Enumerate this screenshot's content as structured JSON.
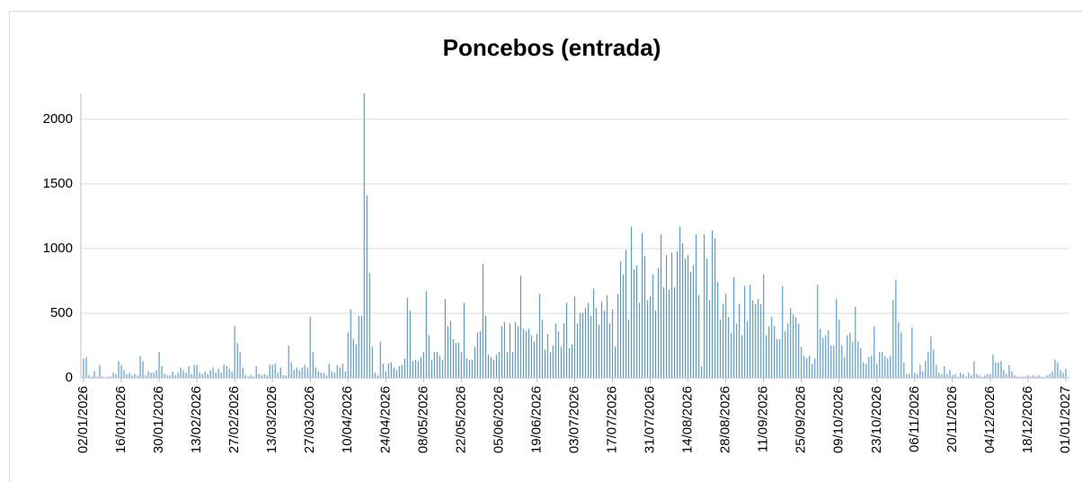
{
  "chart_data": {
    "type": "bar",
    "title": "Poncebos (entrada)",
    "color": "#5b9bd5",
    "grid": true,
    "ylim": [
      0,
      2200
    ],
    "yticks": [
      0,
      500,
      1000,
      1500,
      2000
    ],
    "categories": [
      "02/01/2026",
      null,
      null,
      null,
      null,
      null,
      null,
      null,
      null,
      null,
      null,
      null,
      null,
      null,
      "16/01/2026",
      null,
      null,
      null,
      null,
      null,
      null,
      null,
      null,
      null,
      null,
      null,
      null,
      null,
      "30/01/2026",
      null,
      null,
      null,
      null,
      null,
      null,
      null,
      null,
      null,
      null,
      null,
      null,
      null,
      "13/02/2026",
      null,
      null,
      null,
      null,
      null,
      null,
      null,
      null,
      null,
      null,
      null,
      null,
      null,
      "27/02/2026",
      null,
      null,
      null,
      null,
      null,
      null,
      null,
      null,
      null,
      null,
      null,
      null,
      null,
      "13/03/2026",
      null,
      null,
      null,
      null,
      null,
      null,
      null,
      null,
      null,
      null,
      null,
      null,
      null,
      "27/03/2026",
      null,
      null,
      null,
      null,
      null,
      null,
      null,
      null,
      null,
      null,
      null,
      null,
      null,
      "10/04/2026",
      null,
      null,
      null,
      null,
      null,
      null,
      null,
      null,
      null,
      null,
      null,
      null,
      null,
      "24/04/2026",
      null,
      null,
      null,
      null,
      null,
      null,
      null,
      null,
      null,
      null,
      null,
      null,
      null,
      "08/05/2026",
      null,
      null,
      null,
      null,
      null,
      null,
      null,
      null,
      null,
      null,
      null,
      null,
      null,
      "22/05/2026",
      null,
      null,
      null,
      null,
      null,
      null,
      null,
      null,
      null,
      null,
      null,
      null,
      null,
      "05/06/2026",
      null,
      null,
      null,
      null,
      null,
      null,
      null,
      null,
      null,
      null,
      null,
      null,
      null,
      "19/06/2026",
      null,
      null,
      null,
      null,
      null,
      null,
      null,
      null,
      null,
      null,
      null,
      null,
      null,
      "03/07/2026",
      null,
      null,
      null,
      null,
      null,
      null,
      null,
      null,
      null,
      null,
      null,
      null,
      null,
      "17/07/2026",
      null,
      null,
      null,
      null,
      null,
      null,
      null,
      null,
      null,
      null,
      null,
      null,
      null,
      "31/07/2026",
      null,
      null,
      null,
      null,
      null,
      null,
      null,
      null,
      null,
      null,
      null,
      null,
      null,
      "14/08/2026",
      null,
      null,
      null,
      null,
      null,
      null,
      null,
      null,
      null,
      null,
      null,
      null,
      null,
      "28/08/2026",
      null,
      null,
      null,
      null,
      null,
      null,
      null,
      null,
      null,
      null,
      null,
      null,
      null,
      "11/09/2026",
      null,
      null,
      null,
      null,
      null,
      null,
      null,
      null,
      null,
      null,
      null,
      null,
      null,
      "25/09/2026",
      null,
      null,
      null,
      null,
      null,
      null,
      null,
      null,
      null,
      null,
      null,
      null,
      null,
      "09/10/2026",
      null,
      null,
      null,
      null,
      null,
      null,
      null,
      null,
      null,
      null,
      null,
      null,
      null,
      "23/10/2026",
      null,
      null,
      null,
      null,
      null,
      null,
      null,
      null,
      null,
      null,
      null,
      null,
      null,
      "06/11/2026",
      null,
      null,
      null,
      null,
      null,
      null,
      null,
      null,
      null,
      null,
      null,
      null,
      null,
      "20/11/2026",
      null,
      null,
      null,
      null,
      null,
      null,
      null,
      null,
      null,
      null,
      null,
      null,
      null,
      "04/12/2026",
      null,
      null,
      null,
      null,
      null,
      null,
      null,
      null,
      null,
      null,
      null,
      null,
      null,
      "18/12/2026",
      null,
      null,
      null,
      null,
      null,
      null,
      null,
      null,
      null,
      null,
      null,
      null,
      null,
      "01/01/2027"
    ],
    "values": [
      150,
      160,
      20,
      10,
      50,
      10,
      100,
      10,
      5,
      10,
      10,
      40,
      30,
      130,
      100,
      60,
      30,
      40,
      20,
      30,
      20,
      170,
      130,
      20,
      50,
      40,
      40,
      60,
      200,
      90,
      30,
      20,
      20,
      50,
      20,
      40,
      80,
      60,
      40,
      90,
      30,
      100,
      100,
      40,
      30,
      50,
      30,
      60,
      80,
      40,
      70,
      40,
      100,
      90,
      70,
      50,
      400,
      270,
      200,
      80,
      20,
      10,
      20,
      10,
      90,
      30,
      20,
      30,
      20,
      100,
      100,
      110,
      40,
      80,
      20,
      20,
      250,
      120,
      60,
      80,
      60,
      80,
      100,
      80,
      470,
      200,
      80,
      50,
      40,
      40,
      20,
      110,
      50,
      40,
      100,
      80,
      110,
      50,
      350,
      530,
      300,
      260,
      480,
      480,
      2200,
      1410,
      810,
      240,
      40,
      20,
      280,
      110,
      50,
      110,
      120,
      80,
      60,
      90,
      100,
      150,
      620,
      520,
      130,
      140,
      130,
      160,
      200,
      670,
      330,
      140,
      200,
      200,
      170,
      140,
      610,
      400,
      440,
      300,
      270,
      270,
      200,
      580,
      150,
      140,
      140,
      240,
      350,
      360,
      880,
      480,
      180,
      160,
      140,
      180,
      200,
      400,
      430,
      200,
      420,
      200,
      430,
      400,
      790,
      380,
      360,
      380,
      330,
      280,
      340,
      650,
      450,
      220,
      340,
      200,
      250,
      420,
      360,
      240,
      420,
      580,
      230,
      260,
      630,
      420,
      500,
      500,
      540,
      580,
      480,
      690,
      540,
      410,
      590,
      520,
      640,
      420,
      530,
      240,
      650,
      900,
      800,
      990,
      450,
      1170,
      840,
      870,
      580,
      1120,
      940,
      600,
      630,
      800,
      520,
      850,
      1110,
      700,
      950,
      680,
      970,
      700,
      980,
      1170,
      1040,
      920,
      950,
      820,
      870,
      1110,
      640,
      90,
      1110,
      920,
      600,
      1140,
      1080,
      740,
      450,
      570,
      650,
      470,
      350,
      780,
      420,
      570,
      330,
      710,
      440,
      720,
      600,
      570,
      610,
      570,
      800,
      330,
      400,
      470,
      400,
      300,
      300,
      710,
      360,
      420,
      540,
      490,
      470,
      420,
      240,
      170,
      150,
      170,
      110,
      150,
      720,
      380,
      310,
      330,
      370,
      250,
      250,
      610,
      450,
      250,
      160,
      330,
      350,
      280,
      550,
      280,
      230,
      120,
      110,
      160,
      170,
      400,
      110,
      200,
      200,
      170,
      150,
      170,
      600,
      760,
      430,
      350,
      120,
      30,
      30,
      390,
      40,
      30,
      100,
      50,
      130,
      200,
      320,
      220,
      100,
      40,
      30,
      90,
      30,
      60,
      20,
      30,
      10,
      40,
      30,
      10,
      40,
      20,
      130,
      30,
      20,
      10,
      20,
      30,
      30,
      180,
      120,
      120,
      130,
      60,
      30,
      100,
      50,
      20,
      10,
      10,
      10,
      10,
      20,
      10,
      20,
      10,
      20,
      10,
      5,
      20,
      30,
      50,
      140,
      120,
      60,
      40,
      70
    ]
  }
}
